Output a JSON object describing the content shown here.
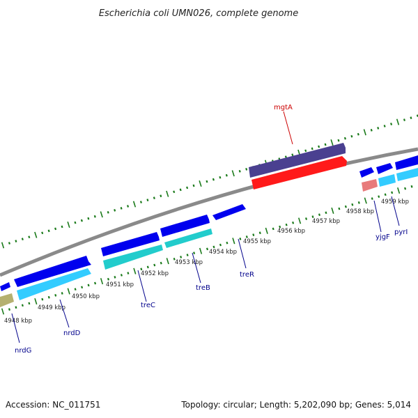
{
  "title": "Escherichia coli UMN026, complete genome",
  "footer": {
    "accession": "Accession: NC_011751",
    "summary": "Topology: circular; Length: 5,202,090 bp; Genes: 5,014"
  },
  "colors": {
    "backbone": "#8a8a8a",
    "tick": "#1a7a1a",
    "gene_label": "#00008b",
    "highlight_label": "#cc0000",
    "cds_dark": "#0000ee",
    "cds_light": "#33ccff",
    "cds_teal": "#22cccc",
    "rna_purple": "#4a4090",
    "highlight_red": "#ff1a1a",
    "pseudo_olive": "#b5b070",
    "pink": "#e87a7a"
  },
  "kbp_labels": [
    "4948 kbp",
    "4949 kbp",
    "4950 kbp",
    "4951 kbp",
    "4952 kbp",
    "4953 kbp",
    "4954 kbp",
    "4955 kbp",
    "4956 kbp",
    "4957 kbp",
    "4958 kbp",
    "4959 kbp"
  ],
  "gene_labels": [
    {
      "name": "nrdG",
      "highlight": false
    },
    {
      "name": "nrdD",
      "highlight": false
    },
    {
      "name": "treC",
      "highlight": false
    },
    {
      "name": "treB",
      "highlight": false
    },
    {
      "name": "treR",
      "highlight": false
    },
    {
      "name": "yjgF",
      "highlight": false
    },
    {
      "name": "pyrI",
      "highlight": false
    },
    {
      "name": "mgtA",
      "highlight": true
    }
  ]
}
